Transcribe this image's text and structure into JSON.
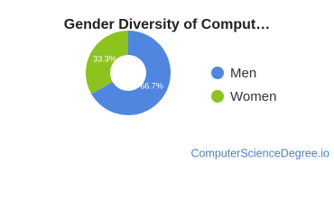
{
  "chart_data": {
    "type": "pie",
    "title": "Gender Diversity of Comput…",
    "categories": [
      "Men",
      "Women"
    ],
    "values": [
      66.7,
      33.3
    ],
    "value_labels": [
      "66.7%",
      "33.3%"
    ],
    "colors": [
      "#4f86e0",
      "#8cc31e"
    ],
    "donut": true,
    "legend": "right",
    "source": "ComputerScienceDegree.io"
  }
}
